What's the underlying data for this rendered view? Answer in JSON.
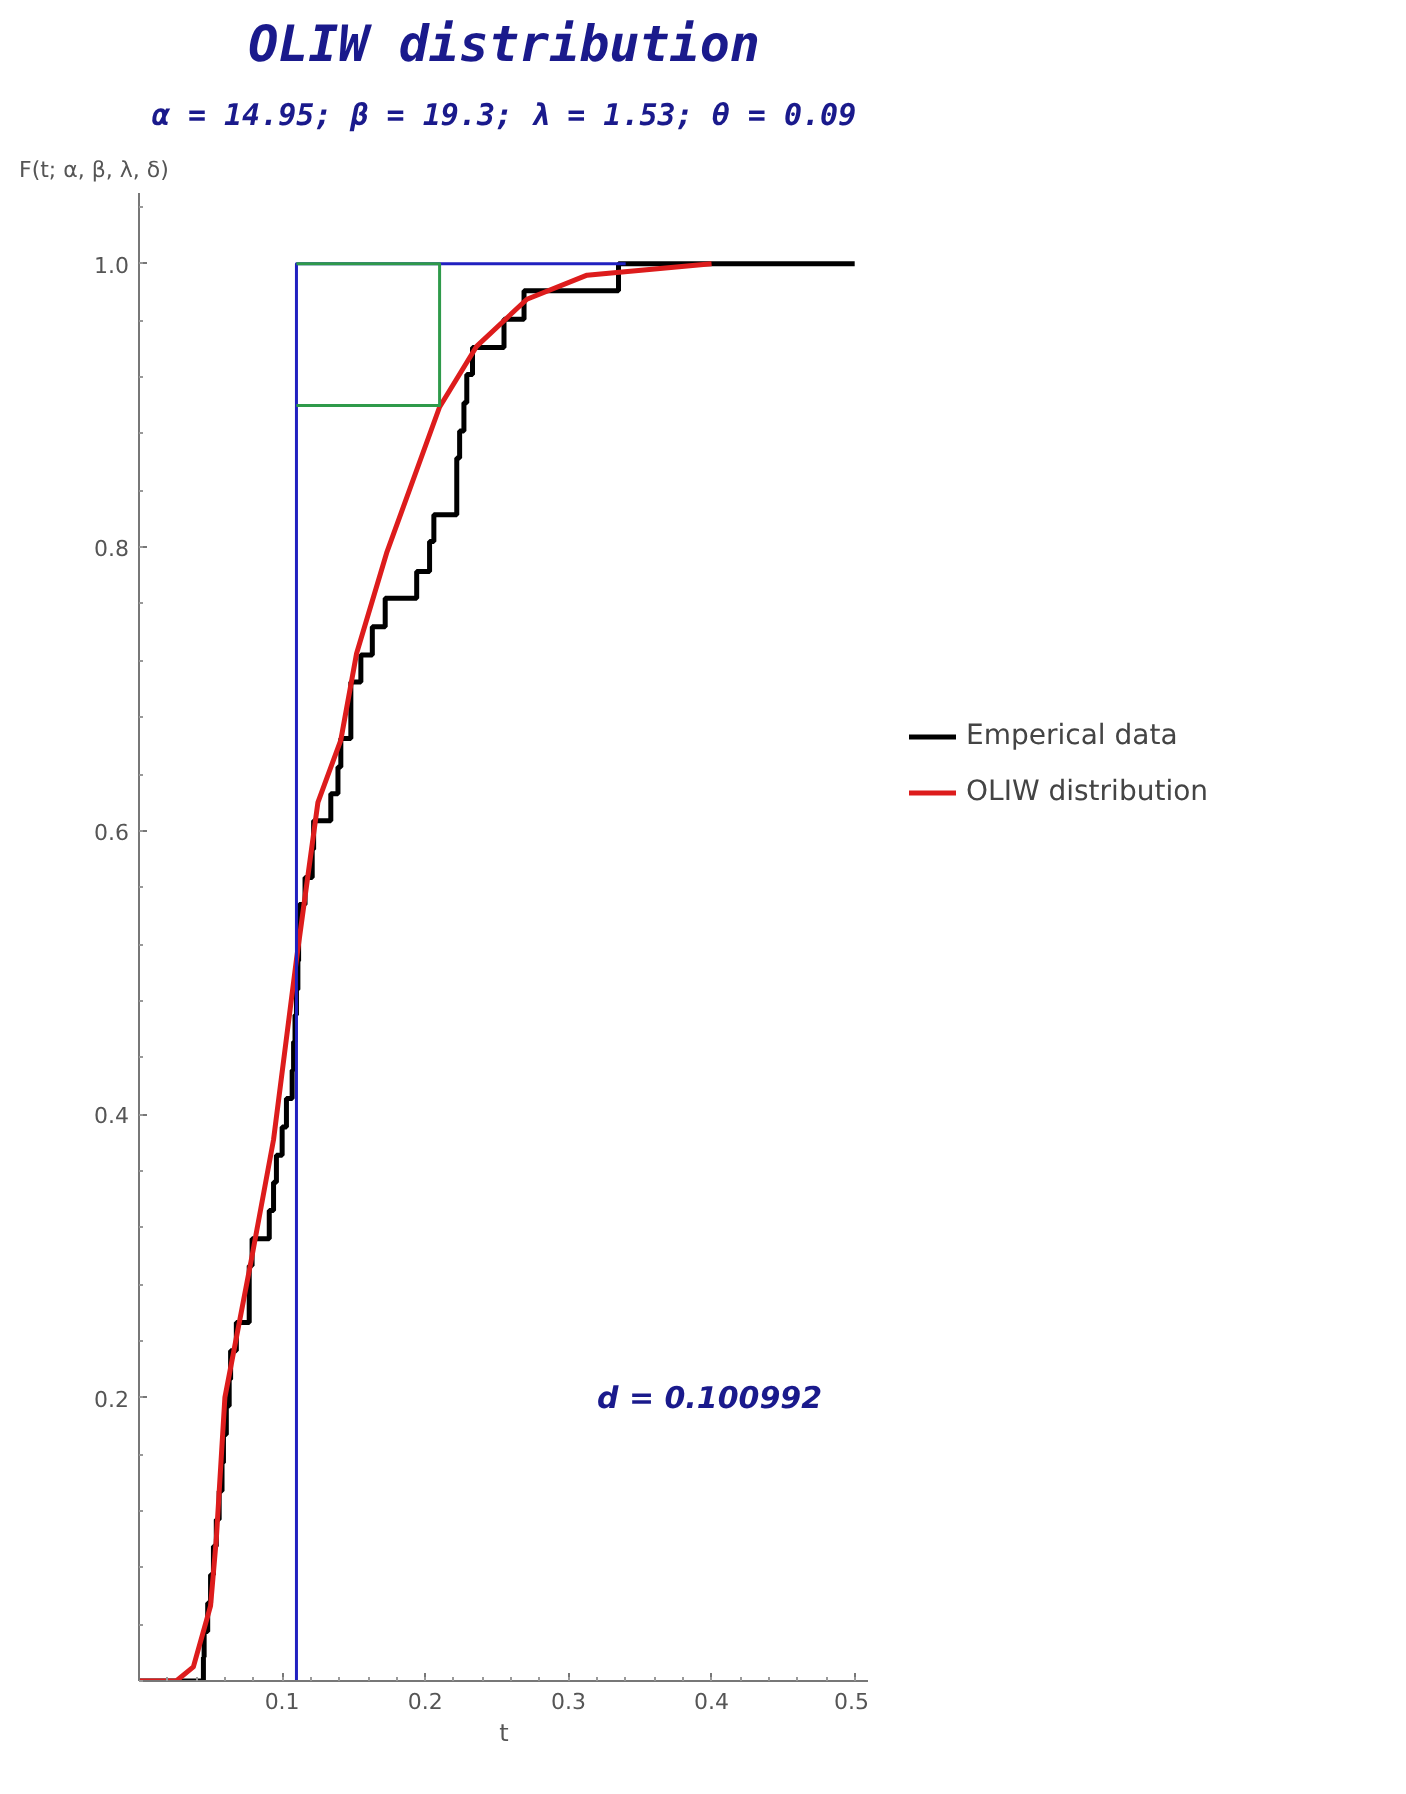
{
  "chart_data": {
    "type": "line",
    "title": "OLIW distribution",
    "subtitle": "α = 14.95; β = 19.3; λ = 1.53; θ = 0.09",
    "xlabel": "t",
    "ylabel": "F(t; α, β, λ, δ)",
    "xlim": [
      0,
      0.51
    ],
    "ylim": [
      0,
      1.05
    ],
    "xticks": [
      0.1,
      0.2,
      0.3,
      0.4,
      0.5
    ],
    "yticks": [
      0.2,
      0.4,
      0.6,
      0.8,
      {
        "value": 1.0,
        "label": "1.0"
      }
    ],
    "grid": false,
    "legend": "right",
    "marker": "none",
    "annotations": [
      "d = 0.100992"
    ],
    "series": [
      {
        "name": "Emperical data",
        "type": "step",
        "color": "#000000",
        "x": [
          0,
          0.045,
          0.0455,
          0.048,
          0.05,
          0.052,
          0.054,
          0.056,
          0.058,
          0.059,
          0.061,
          0.063,
          0.064,
          0.068,
          0.077,
          0.079,
          0.091,
          0.094,
          0.096,
          0.1,
          0.103,
          0.107,
          0.108,
          0.109,
          0.11,
          0.111,
          0.1115,
          0.112,
          0.116,
          0.121,
          0.122,
          0.134,
          0.139,
          0.141,
          0.148,
          0.155,
          0.163,
          0.172,
          0.194,
          0.203,
          0.206,
          0.222,
          0.224,
          0.227,
          0.229,
          0.233,
          0.255,
          0.269,
          0.335,
          0.5
        ],
        "values": [
          0,
          0.017,
          0.035,
          0.055,
          0.075,
          0.095,
          0.114,
          0.134,
          0.154,
          0.174,
          0.194,
          0.213,
          0.233,
          0.253,
          0.293,
          0.312,
          0.332,
          0.352,
          0.371,
          0.391,
          0.411,
          0.431,
          0.451,
          0.47,
          0.488,
          0.508,
          0.528,
          0.548,
          0.567,
          0.587,
          0.607,
          0.626,
          0.645,
          0.665,
          0.705,
          0.724,
          0.744,
          0.764,
          0.783,
          0.804,
          0.823,
          0.863,
          0.882,
          0.902,
          0.922,
          0.941,
          0.961,
          0.981,
          1.0,
          1.0
        ]
      },
      {
        "name": "OLIW distribution",
        "color": "#dd1c1c",
        "x": [
          0,
          0.026,
          0.038,
          0.05,
          0.054,
          0.06,
          0.079,
          0.094,
          0.11,
          0.125,
          0.141,
          0.152,
          0.173,
          0.21,
          0.236,
          0.271,
          0.313,
          0.4
        ],
        "values": [
          0,
          0,
          0.01,
          0.053,
          0.1,
          0.2,
          0.3,
          0.382,
          0.509,
          0.62,
          0.664,
          0.725,
          0.796,
          0.899,
          0.942,
          0.975,
          0.992,
          1.0
        ]
      },
      {
        "color": "#2020c0",
        "x": [
          0.11,
          0.11,
          0.34
        ],
        "values": [
          0,
          1.0,
          1.0
        ]
      },
      {
        "color": "#2e9a4a",
        "x": [
          0.11,
          0.21,
          0.21,
          0.11
        ],
        "values": [
          0.9,
          0.9,
          1.0,
          1.0
        ]
      }
    ]
  }
}
